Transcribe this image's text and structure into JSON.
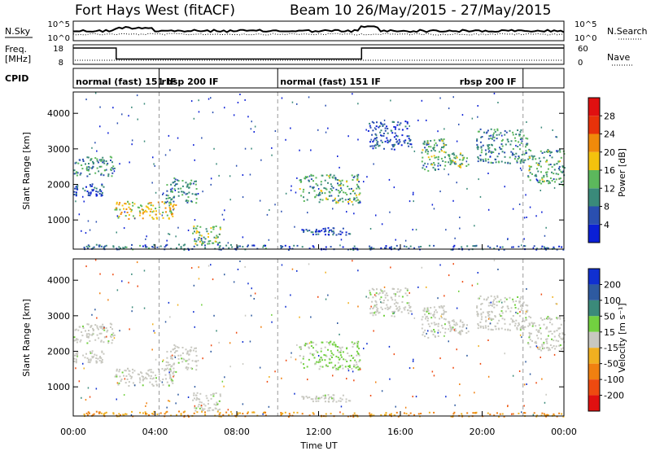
{
  "header": {
    "title": "Fort Hays West (fitACF)",
    "beam_date": "Beam 10  26/May/2015 - 27/May/2015"
  },
  "panels": {
    "nsky": {
      "label": "N.Sky",
      "tick_top": "10^5",
      "tick_bottom": "10^0"
    },
    "nsearch": {
      "label": "N.Search",
      "tick_top": "10^5",
      "tick_bottom": "10^0"
    },
    "freq": {
      "label_1": "Freq.",
      "label_2": "[MHz]",
      "tick_top": "18",
      "tick_bottom": "8"
    },
    "nave": {
      "label": "Nave",
      "tick_top": "60",
      "tick_bottom": "0"
    },
    "cpid": {
      "label": "CPID"
    }
  },
  "cpid_modes": [
    {
      "label": "normal (fast) 151 IF",
      "start_h": 0
    },
    {
      "label": "rbsp 200 IF",
      "start_h": 4.2
    },
    {
      "label": "normal (fast) 151 IF",
      "start_h": 10
    },
    {
      "label": "rbsp 200 IF",
      "start_h": 22
    }
  ],
  "cpid_boundaries_h": [
    4.2,
    10,
    22
  ],
  "axes": {
    "x_label": "Time UT",
    "x_ticks": [
      "00:00",
      "04:00",
      "08:00",
      "12:00",
      "16:00",
      "20:00",
      "00:00"
    ],
    "x_range_h": [
      0,
      24
    ],
    "y_label": "Slant Range [km]",
    "y_ticks": [
      "1000",
      "2000",
      "3000",
      "4000"
    ],
    "y_range_km": [
      180,
      4600
    ]
  },
  "colorbars": {
    "power": {
      "label": "Power [dB]",
      "ticks": [
        "4",
        "8",
        "12",
        "16",
        "20",
        "24",
        "28"
      ],
      "colors": [
        "#0a1fd6",
        "#2a4fb0",
        "#3a8a7a",
        "#5cb85c",
        "#f4c20d",
        "#f08a0a",
        "#e8320a",
        "#e01010"
      ]
    },
    "velocity": {
      "label": "Velocity [m s⁻¹]",
      "ticks": [
        "200",
        "100",
        "50",
        "15",
        "-15",
        "-50",
        "-100",
        "-200"
      ],
      "colors": [
        "#1030d0",
        "#2e5aa0",
        "#3b8a7a",
        "#72d040",
        "#c8c8c0",
        "#f0b020",
        "#f08010",
        "#ee4a10",
        "#e01010"
      ]
    }
  },
  "chart_data": {
    "type": "heatmap",
    "title": "Fort Hays West (fitACF)",
    "x": "Time UT (hours)",
    "frequency_segments_mhz": [
      {
        "t0": 0,
        "t1": 2.1,
        "value": 18
      },
      {
        "t0": 2.1,
        "t1": 14.1,
        "value": 10.5
      },
      {
        "t0": 14.1,
        "t1": 24,
        "value": 18
      }
    ],
    "echo_regions": [
      {
        "t0": 0.0,
        "t1": 2.0,
        "r0": 2250,
        "r1": 2800,
        "power_db": 10,
        "velocity": 0
      },
      {
        "t0": 0.0,
        "t1": 1.5,
        "r0": 1700,
        "r1": 2050,
        "power_db": 6,
        "velocity": 0
      },
      {
        "t0": 2.0,
        "t1": 5.0,
        "r0": 1050,
        "r1": 1550,
        "power_db": 18,
        "velocity": 0
      },
      {
        "t0": 4.5,
        "t1": 6.0,
        "r0": 1500,
        "r1": 2200,
        "power_db": 10,
        "velocity": 0
      },
      {
        "t0": 5.8,
        "t1": 7.2,
        "r0": 350,
        "r1": 850,
        "power_db": 14,
        "velocity": 0
      },
      {
        "t0": 0.5,
        "t1": 9.5,
        "r0": 180,
        "r1": 330,
        "power_db": 8,
        "velocity": -50
      },
      {
        "t0": 11.0,
        "t1": 14.0,
        "r0": 1500,
        "r1": 2300,
        "power_db": 12,
        "velocity": 15
      },
      {
        "t0": 11.0,
        "t1": 13.5,
        "r0": 600,
        "r1": 800,
        "power_db": 6,
        "velocity": 0
      },
      {
        "t0": 14.4,
        "t1": 16.5,
        "r0": 3000,
        "r1": 3800,
        "power_db": 6,
        "velocity": 0
      },
      {
        "t0": 17.0,
        "t1": 18.2,
        "r0": 2400,
        "r1": 3300,
        "power_db": 12,
        "velocity": 0
      },
      {
        "t0": 18.3,
        "t1": 19.3,
        "r0": 2500,
        "r1": 2900,
        "power_db": 14,
        "velocity": 0
      },
      {
        "t0": 19.7,
        "t1": 22.2,
        "r0": 2600,
        "r1": 3600,
        "power_db": 10,
        "velocity": 0
      },
      {
        "t0": 22.2,
        "t1": 24.0,
        "r0": 2000,
        "r1": 3000,
        "power_db": 12,
        "velocity": 0
      },
      {
        "t0": 10.0,
        "t1": 24.0,
        "r0": 180,
        "r1": 300,
        "power_db": 6,
        "velocity": -50
      }
    ]
  }
}
